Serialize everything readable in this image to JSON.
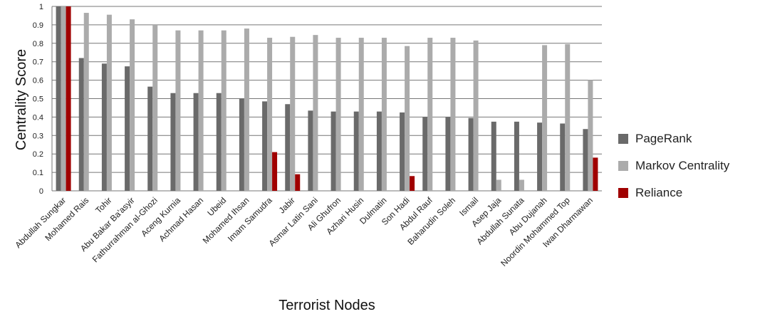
{
  "chart_data": {
    "type": "bar",
    "title": "",
    "xlabel": "Terrorist Nodes",
    "ylabel": "Centrality  Score",
    "ylim": [
      0,
      1
    ],
    "yticks": [
      "0",
      "0.1",
      "0.2",
      "0.3",
      "0.4",
      "0.5",
      "0.6",
      "0.7",
      "0.8",
      "0.9",
      "1"
    ],
    "grid": true,
    "legend_position": "right",
    "categories": [
      "Abdullah Sungkar",
      "Mohamed Rais",
      "Tohir",
      "Abu Bakar Ba'asyir",
      "Fathurrahman al-Ghozi",
      "Aceng Kurnia",
      "Achmad Hasan",
      "Ubeid",
      "Mohamed Ihsan",
      "Imam Samudra",
      "Jabir",
      "Asmar Latin Sani",
      "Ali Ghufron",
      "Azhari Husin",
      "Dulmatin",
      "Son Hadi",
      "Abdul Rauf",
      "Baharudin Soleh",
      "Ismail",
      "Asep Jaja",
      "Abdullah Sunata",
      "Abu Dujanah",
      "Noordin Mohammed Top",
      "Iwan Dharmawan"
    ],
    "series": [
      {
        "name": "PageRank",
        "color": "#6a6a6a",
        "values": [
          1,
          0.72,
          0.69,
          0.675,
          0.565,
          0.53,
          0.53,
          0.53,
          0.5,
          0.485,
          0.47,
          0.435,
          0.43,
          0.43,
          0.43,
          0.425,
          0.4,
          0.4,
          0.395,
          0.375,
          0.375,
          0.37,
          0.365,
          0.335
        ]
      },
      {
        "name": "Markov Centrality",
        "color": "#ababab",
        "values": [
          1,
          0.965,
          0.955,
          0.93,
          0.9,
          0.87,
          0.87,
          0.87,
          0.88,
          0.83,
          0.835,
          0.845,
          0.83,
          0.83,
          0.83,
          0.785,
          0.83,
          0.83,
          0.815,
          0.06,
          0.06,
          0.79,
          0.795,
          0.6
        ]
      },
      {
        "name": "Reliance",
        "color": "#a00000",
        "values": [
          1,
          0,
          0,
          0,
          0,
          0,
          0,
          0,
          0,
          0.21,
          0.09,
          0,
          0,
          0,
          0,
          0.08,
          0,
          0,
          0,
          0,
          0,
          0,
          0,
          0.18
        ]
      }
    ]
  }
}
